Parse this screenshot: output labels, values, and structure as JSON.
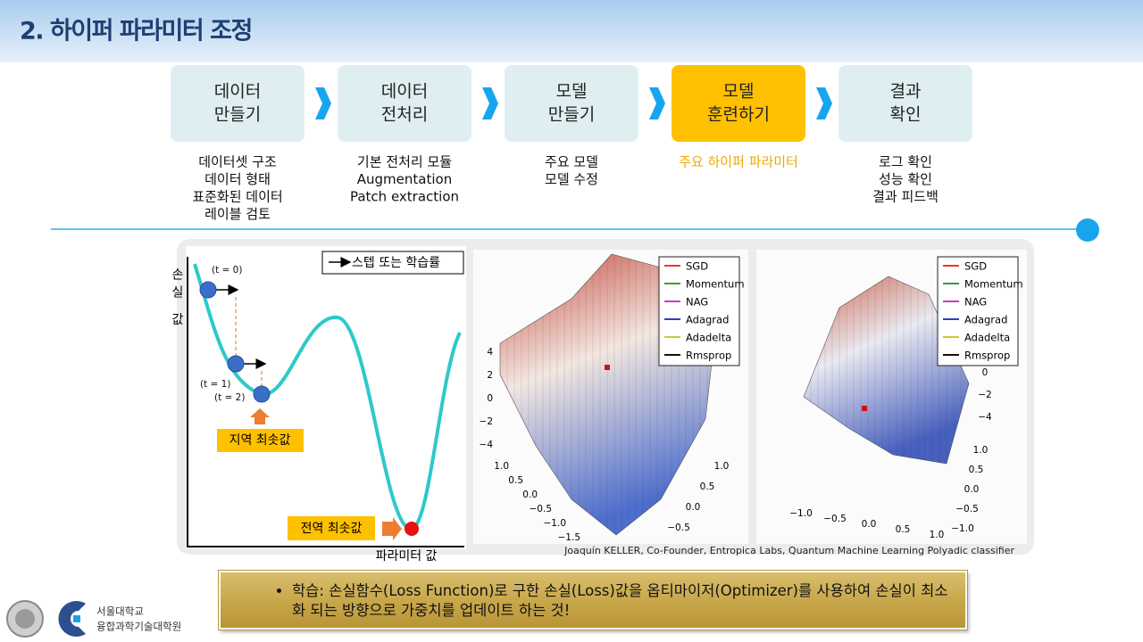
{
  "header": {
    "title": "2. 하이퍼 파라미터 조정"
  },
  "steps": [
    {
      "lines": [
        "데이터",
        "만들기"
      ],
      "details": [
        "데이터셋 구조",
        "데이터 형태",
        "표준화된 데이터",
        "레이블 검토"
      ],
      "active": false
    },
    {
      "lines": [
        "데이터",
        "전처리"
      ],
      "details": [
        "기본 전처리 모듈",
        "Augmentation",
        "Patch extraction"
      ],
      "active": false
    },
    {
      "lines": [
        "모델",
        "만들기"
      ],
      "details": [
        "주요 모델",
        "모델 수정"
      ],
      "active": false
    },
    {
      "lines": [
        "모델",
        "훈련하기"
      ],
      "details": [
        "주요 하이퍼 파라미터"
      ],
      "active": true
    },
    {
      "lines": [
        "결과",
        "확인"
      ],
      "details": [
        "로그 확인",
        "성능 확인",
        "결과 피드백"
      ],
      "active": false
    }
  ],
  "diagram": {
    "legend": "스텝 또는 학습률",
    "y_label": "손실 값",
    "x_label": "파라미터 값",
    "points": [
      "(t = 0)",
      "(t = 1)",
      "(t = 2)"
    ],
    "local_min": "지역 최솟값",
    "global_min": "전역 최솟값"
  },
  "plots": [
    {
      "legend": [
        {
          "name": "SGD",
          "color": "#e8392d"
        },
        {
          "name": "Momentum",
          "color": "#3a9a3a"
        },
        {
          "name": "NAG",
          "color": "#c43cc4"
        },
        {
          "name": "Adagrad",
          "color": "#2c3fc8"
        },
        {
          "name": "Adadelta",
          "color": "#c8c83c"
        },
        {
          "name": "Rmsprop",
          "color": "#111111"
        }
      ],
      "z_ticks": [
        "4",
        "2",
        "0",
        "−2",
        "−4"
      ],
      "left_ticks": [
        "1.0",
        "0.5",
        "0.0",
        "−0.5",
        "−1.0",
        "−1.5"
      ],
      "right_ticks": [
        "1.0",
        "0.5",
        "0.0",
        "−0.5"
      ]
    },
    {
      "legend": [
        {
          "name": "SGD",
          "color": "#e8392d"
        },
        {
          "name": "Momentum",
          "color": "#3a9a3a"
        },
        {
          "name": "NAG",
          "color": "#c43cc4"
        },
        {
          "name": "Adagrad",
          "color": "#2c3fc8"
        },
        {
          "name": "Adadelta",
          "color": "#c8c83c"
        },
        {
          "name": "Rmsprop",
          "color": "#111111"
        }
      ],
      "z_ticks": [
        "0",
        "−2",
        "−4"
      ],
      "bottom_ticks": [
        "−1.0",
        "−0.5",
        "0.0",
        "0.5",
        "1.0"
      ],
      "right_ticks": [
        "1.0",
        "0.5",
        "0.0",
        "−0.5",
        "−1.0"
      ]
    }
  ],
  "credit": "Joaquín KELLER, Co-Founder, Entropica Labs, Quantum Machine Learning Polyadic classifier",
  "summary": "학습: 손실함수(Loss Function)로 구한 손실(Loss)값을 옵티마이저(Optimizer)를 사용하여 손실이 최소화 되는 방향으로 가중치를 업데이트 하는 것!",
  "logo": {
    "line1": "서울대학교",
    "line2": "융합과학기술대학원"
  }
}
